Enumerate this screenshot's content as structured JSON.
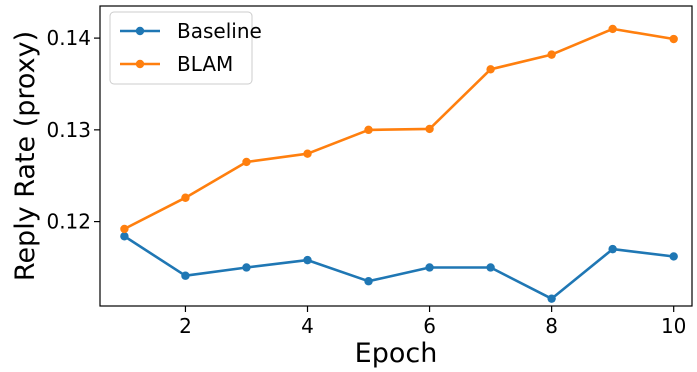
{
  "chart_data": {
    "type": "line",
    "title": "",
    "xlabel": "Epoch",
    "ylabel": "Reply Rate (proxy)",
    "xlim": [
      0.6,
      10.3
    ],
    "ylim": [
      0.1108,
      0.1435
    ],
    "xticks": [
      2,
      4,
      6,
      8,
      10
    ],
    "yticks": [
      0.12,
      0.13,
      0.14
    ],
    "xtick_labels": [
      "2",
      "4",
      "6",
      "8",
      "10"
    ],
    "ytick_labels": [
      "0.12",
      "0.13",
      "0.14"
    ],
    "grid": false,
    "legend_position": "top-left",
    "x": [
      1,
      2,
      3,
      4,
      5,
      6,
      7,
      8,
      9,
      10
    ],
    "series": [
      {
        "name": "Baseline",
        "color": "#1f77b4",
        "values": [
          0.1184,
          0.1141,
          0.115,
          0.1158,
          0.1135,
          0.115,
          0.115,
          0.1116,
          0.117,
          0.1162
        ]
      },
      {
        "name": "BLAM",
        "color": "#ff7f0e",
        "values": [
          0.1192,
          0.1226,
          0.1265,
          0.1274,
          0.13,
          0.1301,
          0.1366,
          0.1382,
          0.141,
          0.1399
        ]
      }
    ]
  }
}
